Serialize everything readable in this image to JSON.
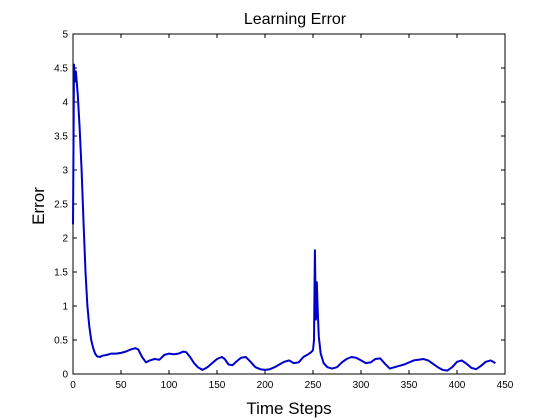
{
  "chart_data": {
    "type": "line",
    "title": "Learning Error",
    "xlabel": "Time Steps",
    "ylabel": "Error",
    "xlim": [
      0,
      450
    ],
    "ylim": [
      0,
      5
    ],
    "xticks": [
      0,
      50,
      100,
      150,
      200,
      250,
      300,
      350,
      400,
      450
    ],
    "xtick_labels": [
      "0",
      "50",
      "100",
      "150",
      "200",
      "250",
      "300",
      "350",
      "400",
      "450"
    ],
    "yticks": [
      0,
      0.5,
      1,
      1.5,
      2,
      2.5,
      3,
      3.5,
      4,
      4.5,
      5
    ],
    "ytick_labels": [
      "0",
      "0.5",
      "1",
      "1.5",
      "2",
      "2.5",
      "3",
      "3.5",
      "4",
      "4.5",
      "5"
    ],
    "grid": false,
    "line_color": "#0000cc",
    "series": [
      {
        "x": [
          0,
          1,
          2,
          3,
          5,
          7,
          9,
          11,
          13,
          15,
          17,
          19,
          21,
          23,
          25,
          28,
          31,
          35,
          40,
          45,
          50,
          55,
          60,
          65,
          68,
          72,
          76,
          80,
          85,
          90,
          95,
          100,
          105,
          110,
          115,
          118,
          122,
          126,
          130,
          135,
          140,
          145,
          150,
          155,
          158,
          162,
          166,
          170,
          175,
          180,
          185,
          190,
          195,
          200,
          205,
          210,
          215,
          220,
          225,
          230,
          235,
          240,
          245,
          248,
          250,
          251,
          252,
          253,
          254,
          255,
          256,
          258,
          261,
          265,
          270,
          275,
          280,
          285,
          290,
          295,
          300,
          305,
          310,
          315,
          320,
          325,
          330,
          335,
          340,
          345,
          350,
          355,
          360,
          365,
          370,
          375,
          380,
          385,
          390,
          395,
          400,
          405,
          410,
          415,
          420,
          425,
          430,
          435,
          440
        ],
        "y": [
          2.2,
          4.55,
          4.3,
          4.45,
          4.1,
          3.6,
          3.0,
          2.2,
          1.5,
          1.0,
          0.7,
          0.5,
          0.38,
          0.3,
          0.26,
          0.25,
          0.27,
          0.28,
          0.3,
          0.3,
          0.31,
          0.33,
          0.36,
          0.38,
          0.36,
          0.25,
          0.17,
          0.2,
          0.22,
          0.21,
          0.28,
          0.3,
          0.29,
          0.3,
          0.33,
          0.32,
          0.25,
          0.16,
          0.1,
          0.06,
          0.1,
          0.16,
          0.22,
          0.25,
          0.22,
          0.14,
          0.13,
          0.18,
          0.24,
          0.25,
          0.18,
          0.1,
          0.07,
          0.06,
          0.07,
          0.1,
          0.14,
          0.18,
          0.2,
          0.16,
          0.17,
          0.25,
          0.29,
          0.32,
          0.35,
          0.5,
          1.82,
          0.8,
          1.35,
          0.9,
          0.55,
          0.3,
          0.16,
          0.1,
          0.08,
          0.1,
          0.17,
          0.22,
          0.25,
          0.24,
          0.2,
          0.16,
          0.17,
          0.22,
          0.23,
          0.15,
          0.08,
          0.1,
          0.12,
          0.14,
          0.17,
          0.2,
          0.21,
          0.22,
          0.2,
          0.15,
          0.1,
          0.06,
          0.05,
          0.1,
          0.18,
          0.2,
          0.15,
          0.09,
          0.07,
          0.12,
          0.18,
          0.2,
          0.16
        ]
      }
    ]
  }
}
